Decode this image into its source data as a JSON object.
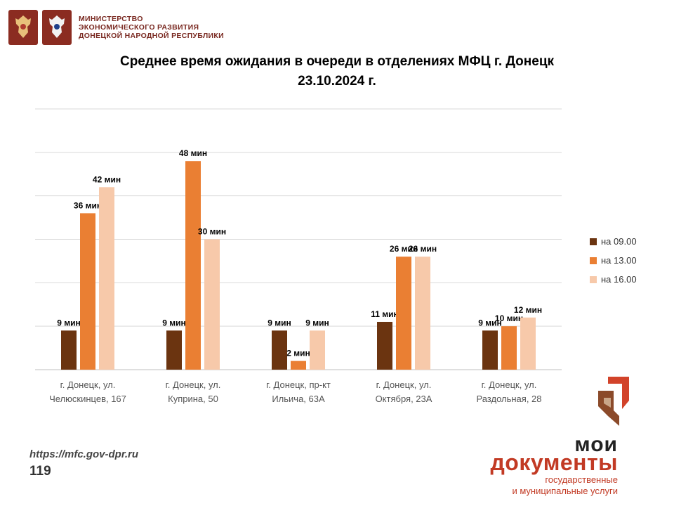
{
  "header": {
    "ministry_lines": [
      "МИНИСТЕРСТВО",
      "ЭКОНОМИЧЕСКОГО РАЗВИТИЯ",
      "ДОНЕЦКОЙ НАРОДНОЙ РЕСПУБЛИКИ"
    ]
  },
  "chart_data": {
    "type": "bar",
    "title_line1": "Среднее время ожидания в очереди в отделениях МФЦ г. Донецк",
    "title_line2": "23.10.2024 г.",
    "categories": [
      [
        "г. Донецк, ул.",
        "Челюскинцев, 167"
      ],
      [
        "г. Донецк, ул.",
        "Куприна, 50"
      ],
      [
        "г. Донецк, пр-кт",
        "Ильича, 63А"
      ],
      [
        "г. Донецк, ул.",
        "Октября, 23А"
      ],
      [
        "г. Донецк, ул.",
        "Раздольная, 28"
      ]
    ],
    "series": [
      {
        "name": "на 09.00",
        "color": "#6b3410",
        "values": [
          9,
          9,
          9,
          11,
          9
        ],
        "labels": [
          "9 мин",
          "9 мин",
          "9 мин",
          "11 мин",
          "9 мин"
        ]
      },
      {
        "name": "на 13.00",
        "color": "#ea7f33",
        "values": [
          36,
          48,
          2,
          26,
          10
        ],
        "labels": [
          "36 мин",
          "48 мин",
          "2 мин",
          "26 мин",
          "10 мин"
        ]
      },
      {
        "name": "на 16.00",
        "color": "#f7c9aa",
        "values": [
          42,
          30,
          9,
          26,
          12
        ],
        "labels": [
          "42 мин",
          "30 мин",
          "9 мин",
          "26 мин",
          "12 мин"
        ]
      }
    ],
    "ylim": [
      0,
      60
    ],
    "grid_step": 10,
    "grid": true,
    "legend_position": "right"
  },
  "footer": {
    "url": "https://mfc.gov-dpr.ru",
    "number": "119"
  },
  "brand": {
    "line1": "мои",
    "line2": "документы",
    "sub1": "государственные",
    "sub2": "и муниципальные услуги"
  }
}
